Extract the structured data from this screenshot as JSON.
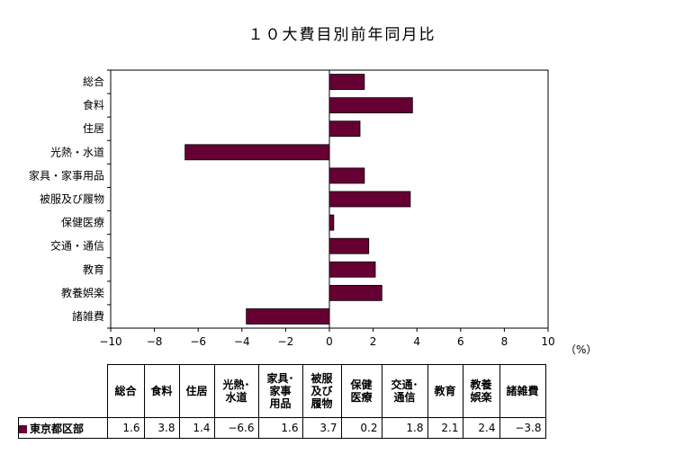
{
  "chart_data": {
    "type": "bar",
    "orientation": "horizontal",
    "title": "１０大費目別前年同月比",
    "unit_label": "（%）",
    "categories": [
      "総合",
      "食料",
      "住居",
      "光熱・水道",
      "家具・家事用品",
      "被服及び履物",
      "保健医療",
      "交通・通信",
      "教育",
      "教養娯楽",
      "諸雑費"
    ],
    "series": [
      {
        "name": "東京都区部",
        "values": [
          1.6,
          3.8,
          1.4,
          -6.6,
          1.6,
          3.7,
          0.2,
          1.8,
          2.1,
          2.4,
          -3.8
        ]
      }
    ],
    "xlim": [
      -10,
      10
    ],
    "xticks": [
      -10,
      -8,
      -6,
      -4,
      -2,
      0,
      2,
      4,
      6,
      8,
      10
    ],
    "grid": false,
    "bar_color": "#660033"
  },
  "table": {
    "headers": [
      [
        "総合"
      ],
      [
        "食料"
      ],
      [
        "住居"
      ],
      [
        "光熱･",
        "水道"
      ],
      [
        "家具･",
        "家事",
        "用品"
      ],
      [
        "被服",
        "及び",
        "履物"
      ],
      [
        "保健",
        "医療"
      ],
      [
        "交通･",
        "通信"
      ],
      [
        "教育"
      ],
      [
        "教養",
        "娯楽"
      ],
      [
        "諸雑費"
      ]
    ],
    "region": "東京都区部",
    "values": [
      "1.6",
      "3.8",
      "1.4",
      "−6.6",
      "1.6",
      "3.7",
      "0.2",
      "1.8",
      "2.1",
      "2.4",
      "−3.8"
    ]
  }
}
